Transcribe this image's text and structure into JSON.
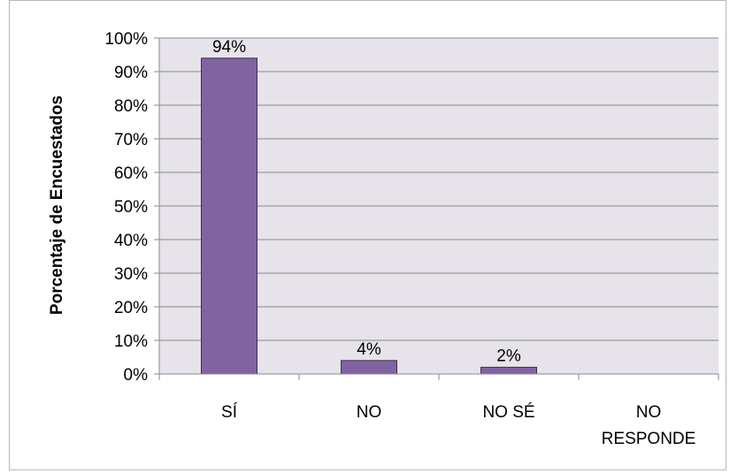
{
  "chart_data": {
    "type": "bar",
    "title": "",
    "xlabel": "",
    "ylabel": "Porcentaje de Encuestados",
    "categories": [
      [
        "SÍ"
      ],
      [
        "NO"
      ],
      [
        "NO SÉ"
      ],
      [
        "NO",
        "RESPONDE"
      ]
    ],
    "values": [
      94,
      4,
      2,
      0
    ],
    "data_labels": [
      "94%",
      "4%",
      "2%",
      ""
    ],
    "ylim": [
      0,
      100
    ],
    "yticks": [
      "0%",
      "10%",
      "20%",
      "30%",
      "40%",
      "50%",
      "60%",
      "70%",
      "80%",
      "90%",
      "100%"
    ],
    "grid": true,
    "legend": "none",
    "colors": {
      "bar_fill": "#8064a2",
      "bar_stroke": "#3f2f56",
      "plot_background": "#e6e3ea",
      "gridline": "#8a8a8a",
      "axis": "#8a8a8a"
    }
  }
}
